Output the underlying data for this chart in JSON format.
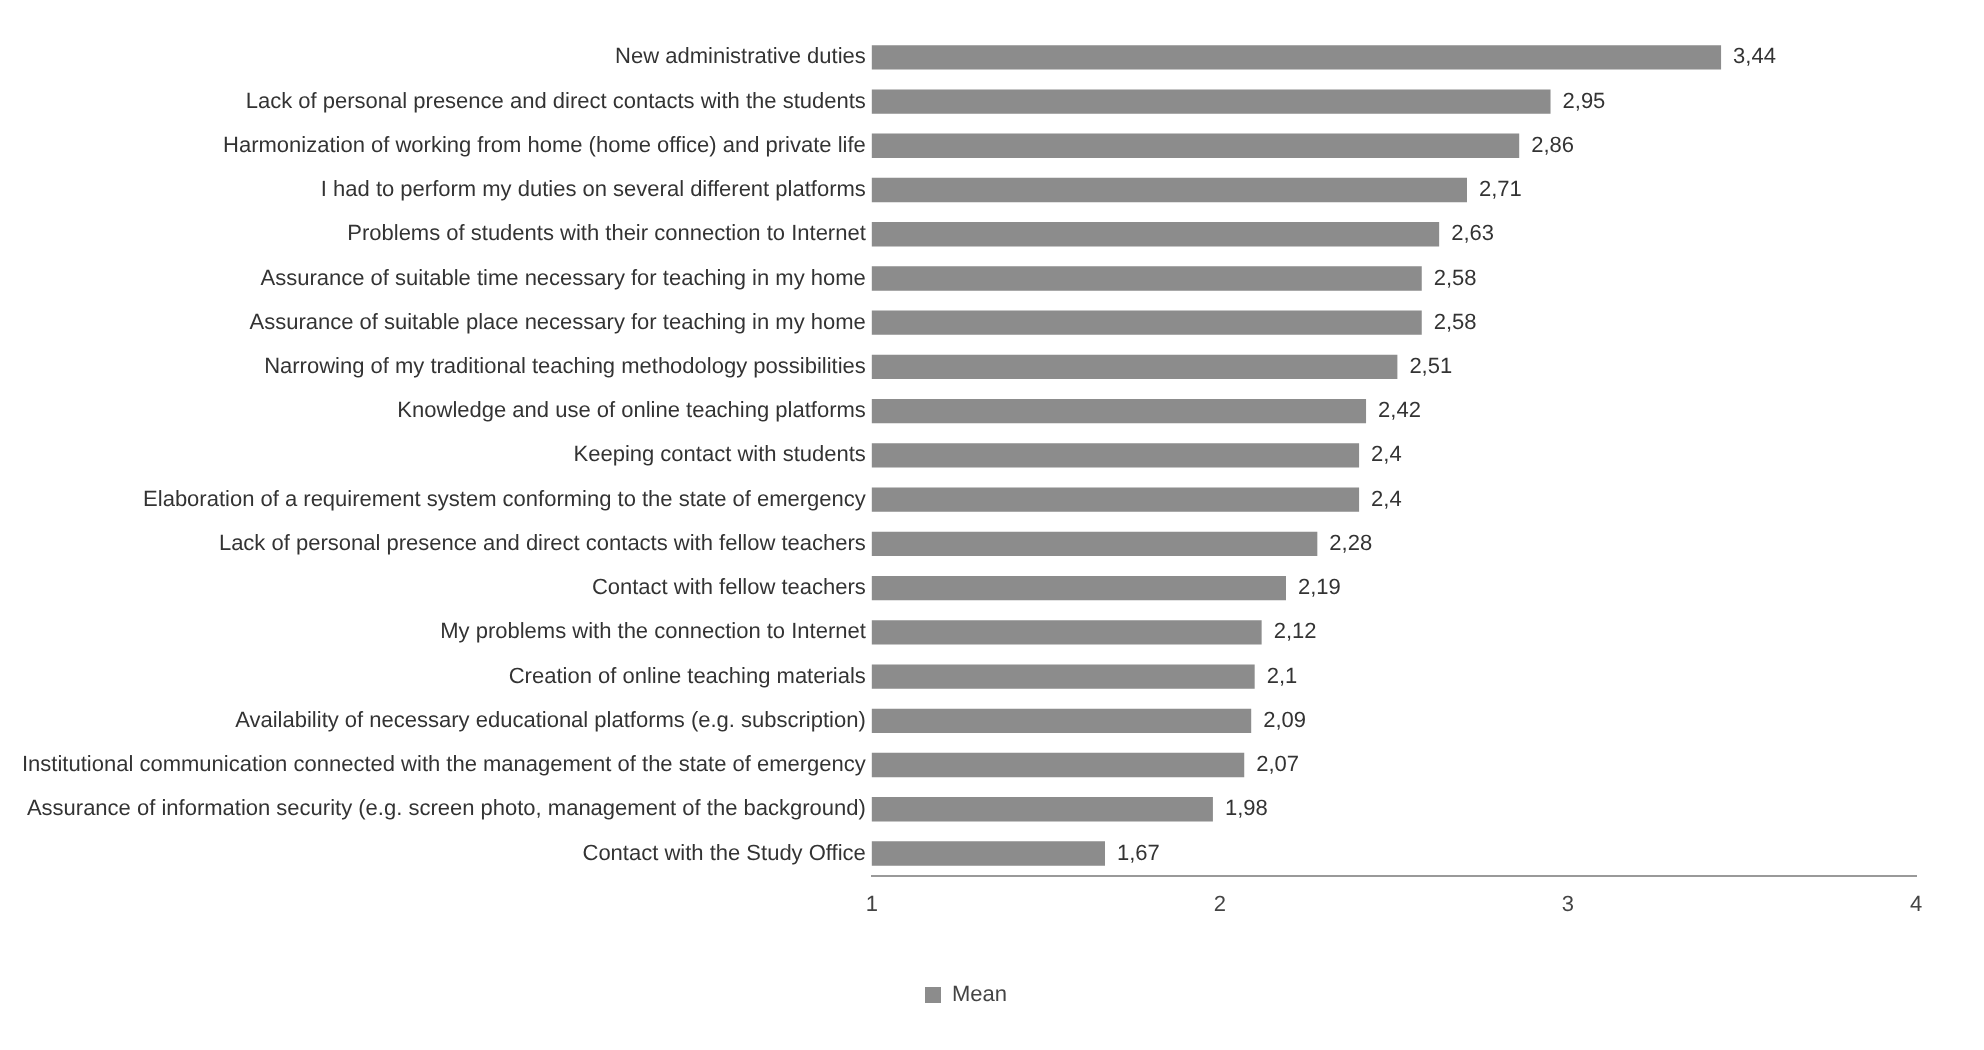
{
  "chart_data": {
    "type": "bar",
    "orientation": "horizontal",
    "categories": [
      "New administrative duties",
      "Lack of personal presence and direct contacts with the students",
      "Harmonization of working from home (home office) and private life",
      "I had to perform my duties on several different platforms",
      "Problems of students with their connection to Internet",
      "Assurance of suitable time necessary for teaching in my home",
      "Assurance of suitable place necessary for teaching in my home",
      "Narrowing of my traditional teaching methodology possibilities",
      "Knowledge and use of online teaching platforms",
      "Keeping contact with students",
      "Elaboration of a requirement system conforming to the state of emergency",
      "Lack of personal presence and direct contacts with fellow teachers",
      "Contact with fellow teachers",
      "My problems with the connection to Internet",
      "Creation of online teaching materials",
      "Availability of necessary educational platforms (e.g. subscription)",
      "Institutional communication connected with the management of the state of emergency",
      "Assurance of information security (e.g. screen photo, management of the background)",
      "Contact with the Study Office"
    ],
    "series": [
      {
        "name": "Mean",
        "color": "#8c8c8c",
        "values": [
          3.44,
          2.95,
          2.86,
          2.71,
          2.63,
          2.58,
          2.58,
          2.51,
          2.42,
          2.4,
          2.4,
          2.28,
          2.19,
          2.12,
          2.1,
          2.09,
          2.07,
          1.98,
          1.67
        ],
        "value_labels": [
          "3,44",
          "2,95",
          "2,86",
          "2,71",
          "2,63",
          "2,58",
          "2,58",
          "2,51",
          "2,42",
          "2,4",
          "2,4",
          "2,28",
          "2,19",
          "2,12",
          "2,1",
          "2,09",
          "2,07",
          "1,98",
          "1,67"
        ]
      }
    ],
    "xlim": [
      1,
      4
    ],
    "xticks": [
      1,
      2,
      3,
      4
    ],
    "grid": false,
    "legend": "bottom"
  }
}
